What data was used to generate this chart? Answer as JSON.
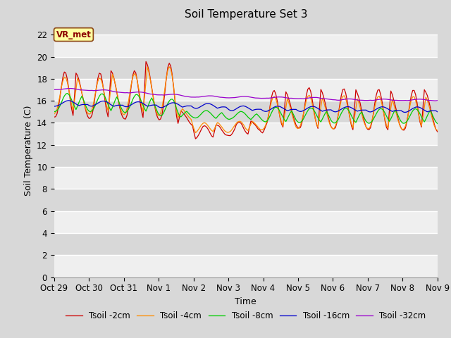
{
  "title": "Soil Temperature Set 3",
  "xlabel": "Time",
  "ylabel": "Soil Temperature (C)",
  "ylim": [
    0,
    23
  ],
  "yticks": [
    0,
    2,
    4,
    6,
    8,
    10,
    12,
    14,
    16,
    18,
    20,
    22
  ],
  "x_tick_labels": [
    "Oct 29",
    "Oct 30",
    "Oct 31",
    "Nov 1",
    "Nov 2",
    "Nov 3",
    "Nov 4",
    "Nov 5",
    "Nov 6",
    "Nov 7",
    "Nov 8",
    "Nov 9"
  ],
  "annotation_text": "VR_met",
  "bg_color": "#D8D8D8",
  "white_band_color": "#EBEBEB",
  "series": [
    {
      "label": "Tsoil -2cm",
      "color": "#CC0000"
    },
    {
      "label": "Tsoil -4cm",
      "color": "#FF8C00"
    },
    {
      "label": "Tsoil -8cm",
      "color": "#00CC00"
    },
    {
      "label": "Tsoil -16cm",
      "color": "#0000CC"
    },
    {
      "label": "Tsoil -32cm",
      "color": "#9900CC"
    }
  ],
  "title_fontsize": 11,
  "axis_label_fontsize": 9,
  "tick_fontsize": 8.5
}
